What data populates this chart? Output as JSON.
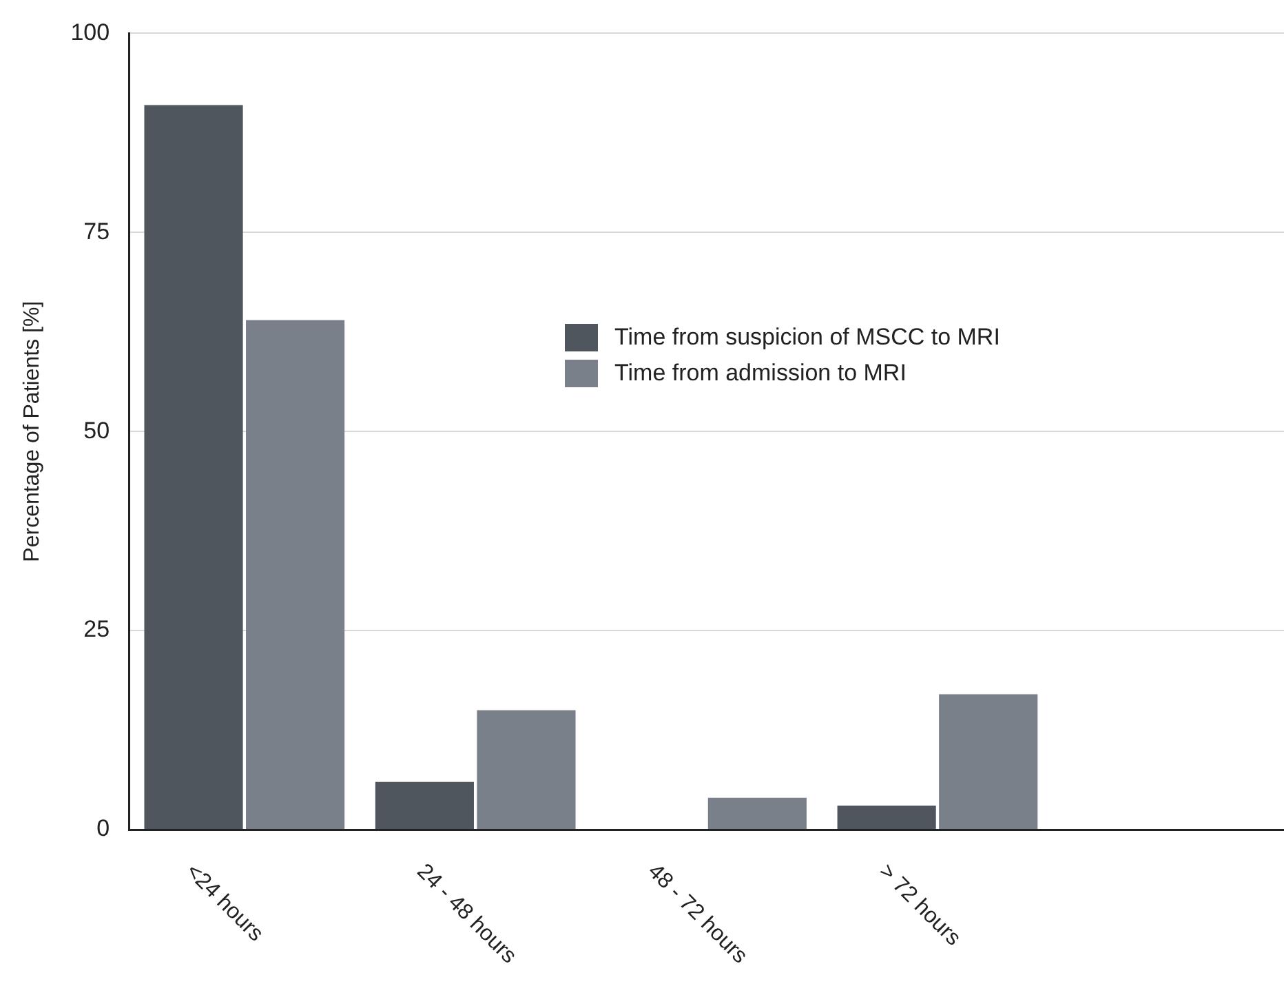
{
  "chart_data": {
    "type": "bar",
    "ylabel": "Percentage of Patients [%]",
    "categories": [
      "<24 hours",
      "24 - 48 hours",
      "48 - 72 hours",
      "> 72 hours",
      null
    ],
    "series": [
      {
        "name": "Time from suspicion of MSCC to MRI",
        "color": "#50565e",
        "values": [
          91,
          6,
          0,
          3,
          null
        ]
      },
      {
        "name": "Time from admission to MRI",
        "color": "#7a8089",
        "values": [
          64,
          15,
          4,
          17,
          null
        ]
      }
    ],
    "ylim": [
      0,
      100
    ],
    "yticks": [
      0,
      25,
      50,
      75,
      100
    ],
    "grid": "y",
    "legend": "right"
  }
}
